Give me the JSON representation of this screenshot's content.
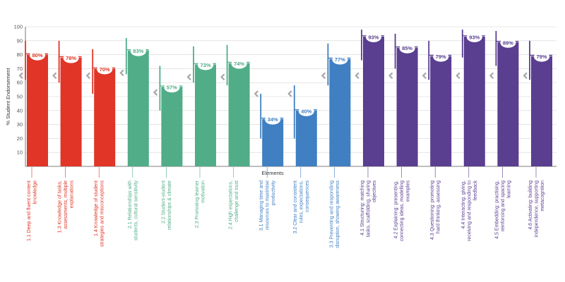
{
  "chart_data": {
    "type": "bar",
    "xlabel": "Elements",
    "ylabel": "% Student Endorsement",
    "ylim": [
      0,
      100
    ],
    "yticks": [
      10,
      20,
      30,
      40,
      50,
      60,
      70,
      80,
      90,
      100
    ],
    "grid": true,
    "legend": "none",
    "categories": [
      "1.1 Deep and fluent content knowledge",
      "1.3 Knowledge of tasks, assessments, multiple explanations",
      "1.4 Knowledge of student strategies and misconceptions",
      "2.1 Relationships with students, cultural sensitivity",
      "2.2 Student-student relationships & climate",
      "2.3 Promoting learner motivation",
      "2.4 High expectations, challenge and trust",
      "3.1 Managing time and resources to maximise productivity",
      "3.2 Clear and consistent rules, expectations, consequences",
      "3.3 Preventing and responding disruption, showing awareness",
      "4.1 Structuring: matching tasks, scaffolding, sharing objectives",
      "4.2 Explaining: presenting, connecting ideas, modelling examples",
      "4.3 Questioning: promoting hard thinking, assessing",
      "4.4 Interacting: giving, receiving and responding to feedback",
      "4.5 Embedding: practising, reinforcing and spacing learning",
      "4.6 Activating: building independence, supporting metacognition"
    ],
    "values": [
      80,
      78,
      70,
      83,
      57,
      73,
      74,
      34,
      40,
      77,
      93,
      85,
      79,
      93,
      89,
      79
    ],
    "value_labels": [
      "80%",
      "78%",
      "70%",
      "83%",
      "57%",
      "73%",
      "74%",
      "34%",
      "40%",
      "77%",
      "93%",
      "85%",
      "79%",
      "93%",
      "89%",
      "79%"
    ],
    "groups": [
      1,
      1,
      1,
      2,
      2,
      2,
      2,
      3,
      3,
      3,
      4,
      4,
      4,
      4,
      4,
      4
    ],
    "group_colors": {
      "1": "#e03527",
      "2": "#50ad88",
      "3": "#3f7fc2",
      "4": "#5a3e90"
    },
    "error_bars": [
      [
        62,
        90
      ],
      [
        60,
        90
      ],
      [
        52,
        84
      ],
      [
        66,
        92
      ],
      [
        40,
        72
      ],
      [
        60,
        86
      ],
      [
        58,
        87
      ],
      [
        20,
        52
      ],
      [
        20,
        58
      ],
      [
        58,
        88
      ],
      [
        76,
        98
      ],
      [
        70,
        95
      ],
      [
        62,
        90
      ],
      [
        78,
        98
      ],
      [
        72,
        97
      ],
      [
        62,
        90
      ]
    ],
    "comparison_markers": [
      65,
      65,
      65,
      67,
      53,
      64,
      64,
      52,
      52,
      65,
      65,
      65,
      65,
      65,
      65,
      65
    ]
  }
}
